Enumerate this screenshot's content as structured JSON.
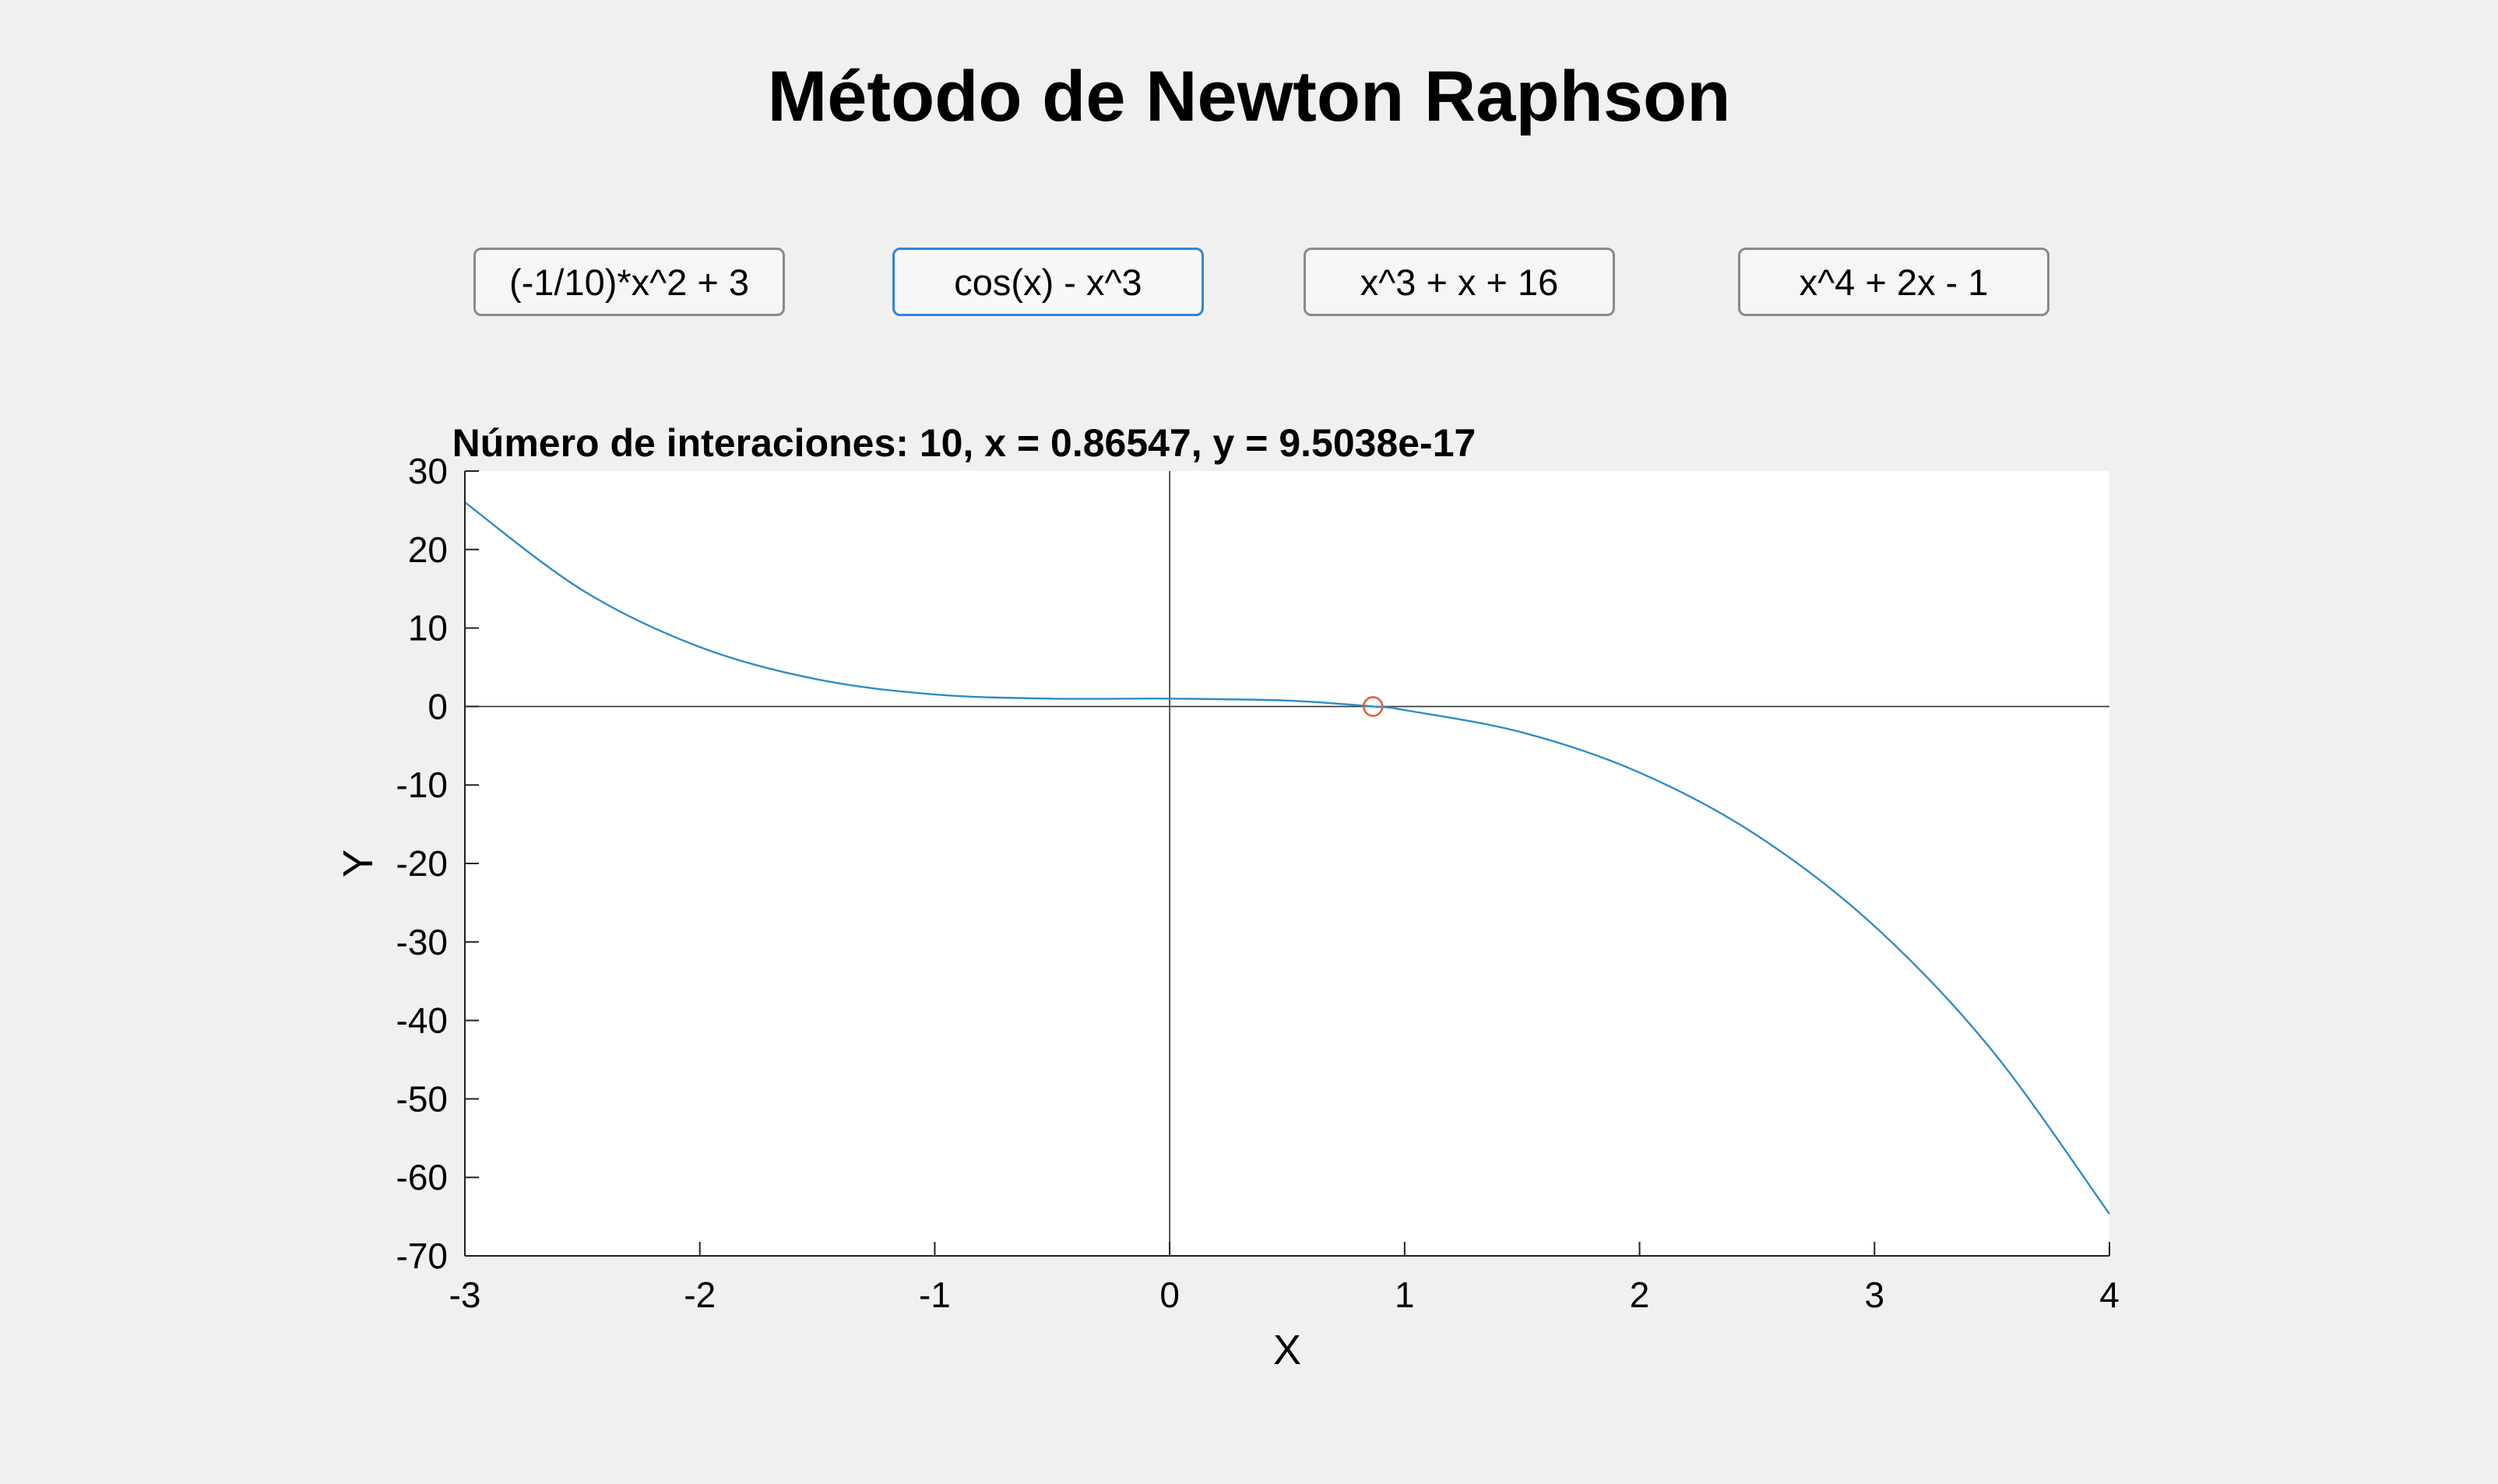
{
  "window": {
    "title": "Método de Newton Raphson"
  },
  "functions": [
    {
      "label": "(-1/10)*x^2 + 3",
      "selected": false
    },
    {
      "label": "cos(x) - x^3",
      "selected": true
    },
    {
      "label": "x^3 + x + 16",
      "selected": false
    },
    {
      "label": "x^4 + 2x - 1",
      "selected": false
    }
  ],
  "colors": {
    "curve": "#2f8cc8",
    "root_marker": "#e0603a",
    "selected_button_border": "#2f86d6"
  },
  "chart_data": {
    "type": "line",
    "title": "Número de interaciones: 10, x = 0.86547, y = 9.5038e-17",
    "xlabel": "X",
    "ylabel": "Y",
    "xlim": [
      -3,
      4
    ],
    "ylim": [
      -70,
      30
    ],
    "xticks": [
      -3,
      -2,
      -1,
      0,
      1,
      2,
      3,
      4
    ],
    "yticks": [
      30,
      20,
      10,
      0,
      -10,
      -20,
      -30,
      -40,
      -50,
      -60,
      -70
    ],
    "grid": false,
    "reference_lines": {
      "x": 0,
      "y": 0
    },
    "series": [
      {
        "function": "cos(x) - x^3",
        "x": [
          -3,
          -2.5,
          -2,
          -1.5,
          -1,
          -0.5,
          0,
          0.5,
          0.86547,
          1,
          1.5,
          2,
          2.5,
          3,
          3.5,
          4
        ],
        "y": [
          26.01,
          14.82,
          7.58,
          3.45,
          1.54,
          1.0,
          1.0,
          0.75,
          0.0,
          -0.46,
          -3.3,
          -8.42,
          -16.43,
          -27.99,
          -43.81,
          -64.65
        ]
      }
    ],
    "root_marker": {
      "x": 0.86547,
      "y": 0
    }
  }
}
